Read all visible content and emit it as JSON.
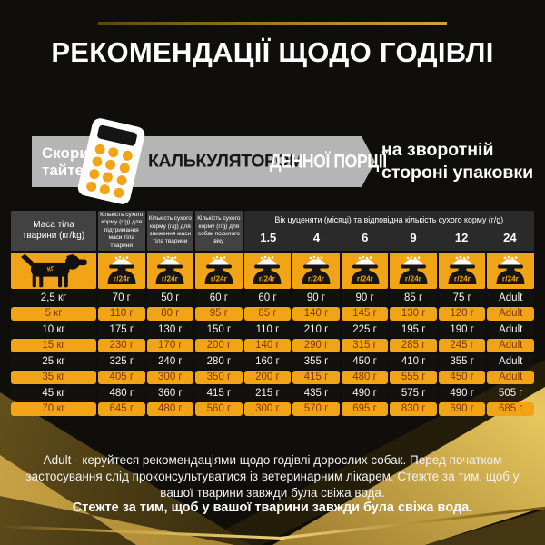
{
  "title": "РЕКОМЕНДАЦІЇ ЩОДО ГОДІВЛІ",
  "banner": {
    "use_line1": "Скорис-",
    "use_line2": "тайтесь",
    "calculator_word": "КАЛЬКУЛЯТОРОМ",
    "portion_word": "ДЕННОЇ ПОРЦІЇ",
    "back_line1": "на зворотній",
    "back_line2": "стороні упаковки"
  },
  "table": {
    "mass_header": "Маса тіла тварини (кг/kg)",
    "col_headers": [
      "Кількість сухого корму (г/g) для підтримання маси тіла тварини",
      "Кількість сухого корму (г/g) для зниження маси тіла тварини",
      "Кількість сухого корму (г/g) для собак похилого віку"
    ],
    "age_span_header": "Вік цуценяти (місяці) та відповідна кількість сухого корму (г/g)",
    "ages": [
      "1.5",
      "4",
      "6",
      "9",
      "12",
      "24"
    ],
    "bowl_label": "г/24г",
    "dog_label": "КГ",
    "rows": [
      {
        "weight": "2,5 кг",
        "highlight": false,
        "values": [
          "70 г",
          "50 г",
          "60 г",
          "60 г",
          "90 г",
          "90 г",
          "85 г",
          "75 г",
          "Adult"
        ]
      },
      {
        "weight": "5 кг",
        "highlight": true,
        "values": [
          "110 г",
          "80 г",
          "95 г",
          "85 г",
          "140 г",
          "145 г",
          "130 г",
          "120 г",
          "Adult"
        ]
      },
      {
        "weight": "10 кг",
        "highlight": false,
        "values": [
          "175 г",
          "130 г",
          "150 г",
          "110 г",
          "210 г",
          "225 г",
          "195 г",
          "190 г",
          "Adult"
        ]
      },
      {
        "weight": "15 кг",
        "highlight": true,
        "values": [
          "230 г",
          "170 г",
          "200 г",
          "140 г",
          "290 г",
          "315 г",
          "285 г",
          "245 г",
          "Adult"
        ]
      },
      {
        "weight": "25 кг",
        "highlight": false,
        "values": [
          "325 г",
          "240 г",
          "280 г",
          "160 г",
          "355 г",
          "450 г",
          "410 г",
          "355 г",
          "Adult"
        ]
      },
      {
        "weight": "35 кг",
        "highlight": true,
        "values": [
          "405 г",
          "300 г",
          "350 г",
          "200 г",
          "415 г",
          "480 г",
          "555 г",
          "450 г",
          "Adult"
        ]
      },
      {
        "weight": "45 кг",
        "highlight": false,
        "values": [
          "480 г",
          "360 г",
          "415 г",
          "215 г",
          "435 г",
          "490 г",
          "575 г",
          "490 г",
          "505 г"
        ]
      },
      {
        "weight": "70 кг",
        "highlight": true,
        "values": [
          "645 г",
          "480 г",
          "560 г",
          "300 г",
          "570 г",
          "695 г",
          "830 г",
          "690 г",
          "685 г"
        ]
      }
    ]
  },
  "footer": {
    "note": "Adult - керуйтеся рекомендаціями щодо годівлі дорослих собак. Перед початком застосування слід проконсультуватися із ветеринарним лікарем. Стежте за тим, щоб у вашої тварини завжди була свіжа вода.",
    "bold_note": "Стежте за тим, щоб у вашої тварини завжди була свіжа вода."
  },
  "colors": {
    "accent_orange": "#F2A417",
    "row_text_brown": "#7E3800",
    "banner_gray": "#B5B5B5",
    "gold": "#CBA247",
    "background": "#0F0E0B"
  }
}
